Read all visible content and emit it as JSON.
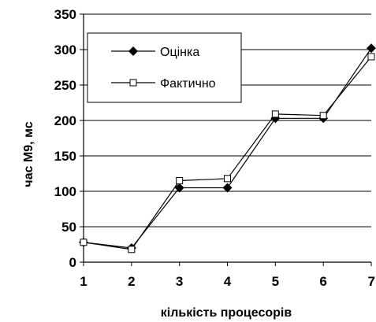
{
  "chart_data": {
    "type": "line",
    "x": [
      1,
      2,
      3,
      4,
      5,
      6,
      7
    ],
    "series": [
      {
        "name": "Оцінка",
        "values": [
          28,
          20,
          105,
          105,
          203,
          203,
          302
        ],
        "marker": "diamond-filled",
        "color": "#000000"
      },
      {
        "name": "Фактично",
        "values": [
          28,
          18,
          115,
          118,
          209,
          207,
          290
        ],
        "marker": "square-open",
        "color": "#000000"
      }
    ],
    "xlabel": "кількість процесорів",
    "ylabel": "час М9, мс",
    "xlim": [
      1,
      7
    ],
    "ylim": [
      0,
      350
    ],
    "yticks": [
      0,
      50,
      100,
      150,
      200,
      250,
      300,
      350
    ],
    "xticks": [
      1,
      2,
      3,
      4,
      5,
      6,
      7
    ],
    "grid": "horizontal",
    "legend_position": "top-left"
  }
}
